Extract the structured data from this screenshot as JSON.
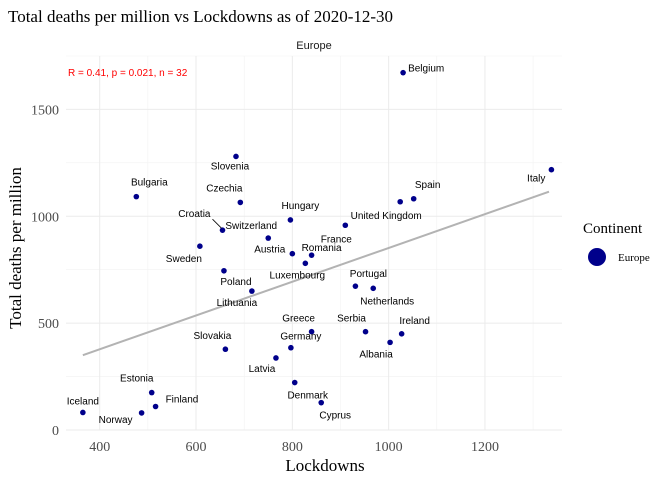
{
  "chart_data": {
    "type": "scatter",
    "title": "Total deaths per million vs Lockdowns as of 2020-12-30",
    "facet_label": "Europe",
    "xlabel": "Lockdowns",
    "ylabel": "Total deaths per million",
    "xlim": [
      330,
      1360
    ],
    "ylim": [
      0,
      1750
    ],
    "x_ticks": [
      400,
      600,
      800,
      1000,
      1200
    ],
    "y_ticks": [
      0,
      500,
      1000,
      1500
    ],
    "grid": true,
    "annotation": "R = 0.41, p = 0.021, n = 32",
    "annotation_color": "#ff0000",
    "point_color": "#00008b",
    "trend_color": "#b3b3b3",
    "trend_line": {
      "x": [
        365,
        1333
      ],
      "y": [
        350,
        1115
      ]
    },
    "legend": {
      "title": "Continent",
      "entries": [
        "Europe"
      ],
      "placement": "right"
    },
    "points": [
      {
        "label": "Belgium",
        "x": 1030,
        "y": 1672
      },
      {
        "label": "Slovenia",
        "x": 683,
        "y": 1280
      },
      {
        "label": "Italy",
        "x": 1338,
        "y": 1218
      },
      {
        "label": "Bulgaria",
        "x": 476,
        "y": 1092
      },
      {
        "label": "Spain",
        "x": 1052,
        "y": 1082
      },
      {
        "label": "Czechia",
        "x": 692,
        "y": 1065
      },
      {
        "label": "United Kingdom",
        "x": 1024,
        "y": 1068
      },
      {
        "label": "Hungary",
        "x": 796,
        "y": 983
      },
      {
        "label": "Croatia",
        "x": 655,
        "y": 935
      },
      {
        "label": "France",
        "x": 910,
        "y": 958
      },
      {
        "label": "Switzerland",
        "x": 750,
        "y": 898
      },
      {
        "label": "Sweden",
        "x": 608,
        "y": 860
      },
      {
        "label": "Romania",
        "x": 840,
        "y": 818
      },
      {
        "label": "Austria",
        "x": 800,
        "y": 825
      },
      {
        "label": "Luxembourg",
        "x": 827,
        "y": 780
      },
      {
        "label": "Poland",
        "x": 658,
        "y": 745
      },
      {
        "label": "Portugal",
        "x": 931,
        "y": 673
      },
      {
        "label": "Netherlands",
        "x": 968,
        "y": 663
      },
      {
        "label": "Lithuania",
        "x": 716,
        "y": 650
      },
      {
        "label": "Serbia",
        "x": 952,
        "y": 460
      },
      {
        "label": "Greece",
        "x": 840,
        "y": 460
      },
      {
        "label": "Ireland",
        "x": 1027,
        "y": 450
      },
      {
        "label": "Albania",
        "x": 1003,
        "y": 410
      },
      {
        "label": "Germany",
        "x": 797,
        "y": 385
      },
      {
        "label": "Slovakia",
        "x": 661,
        "y": 378
      },
      {
        "label": "Latvia",
        "x": 766,
        "y": 337
      },
      {
        "label": "Denmark",
        "x": 805,
        "y": 222
      },
      {
        "label": "Estonia",
        "x": 508,
        "y": 175
      },
      {
        "label": "Cyprus",
        "x": 860,
        "y": 128
      },
      {
        "label": "Finland",
        "x": 516,
        "y": 110
      },
      {
        "label": "Norway",
        "x": 487,
        "y": 80
      },
      {
        "label": "Iceland",
        "x": 365,
        "y": 82
      }
    ]
  }
}
